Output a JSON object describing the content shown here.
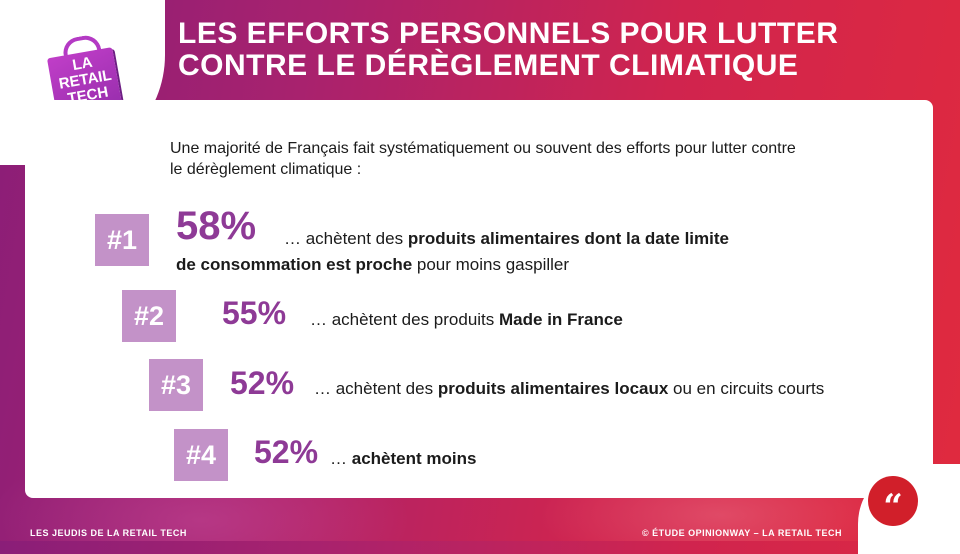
{
  "logo": {
    "text": "LA RETAIL TECH",
    "lines": [
      "LA",
      "RETAIL",
      "TECH"
    ]
  },
  "title": {
    "line1": "LES EFFORTS PERSONNELS POUR LUTTER",
    "line2": "CONTRE LE DÉRÈGLEMENT CLIMATIQUE"
  },
  "intro": {
    "line1": "Une majorité de Français fait systématiquement ou souvent des efforts pour lutter contre",
    "line2": "le dérèglement climatique :"
  },
  "items": [
    {
      "rank": "#1",
      "pct": "58%",
      "pre": "… achètent des ",
      "bold": "produits alimentaires dont la date limite",
      "bold2": "de consommation est proche",
      "post": " pour moins gaspiller"
    },
    {
      "rank": "#2",
      "pct": "55%",
      "pre": "… achètent des produits ",
      "bold": "Made in France",
      "post": ""
    },
    {
      "rank": "#3",
      "pct": "52%",
      "pre": "… achètent des ",
      "bold": "produits alimentaires locaux",
      "post": " ou en circuits courts"
    },
    {
      "rank": "#4",
      "pct": "52%",
      "pre": "… ",
      "bold": "achètent moins",
      "post": ""
    }
  ],
  "footer": {
    "left": "LES JEUDIS DE LA RETAIL TECH",
    "right": "© ÉTUDE OPINIONWAY – LA RETAIL TECH"
  },
  "quote_icon": {
    "glyph": "“",
    "icon": "quote-icon"
  },
  "colors": {
    "accent": "#8e3a96",
    "badge": "#c392c8",
    "quote": "#d11f2a"
  }
}
